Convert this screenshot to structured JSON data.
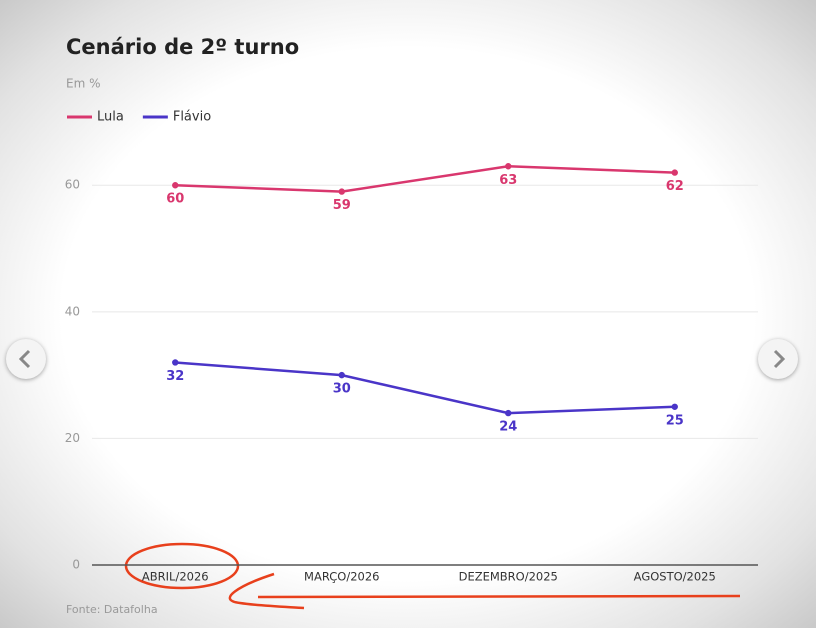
{
  "chart_data": {
    "type": "line",
    "title": "Cenário de 2º turno",
    "subtitle": "Em %",
    "source": "Fonte: Datafolha",
    "categories": [
      "ABRIL/2026",
      "MARÇO/2026",
      "DEZEMBRO/2025",
      "AGOSTO/2025"
    ],
    "series": [
      {
        "name": "Lula",
        "color": "#d9376e",
        "values": [
          60,
          59,
          63,
          62
        ]
      },
      {
        "name": "Flávio",
        "color": "#4a35c8",
        "values": [
          32,
          30,
          24,
          25
        ]
      }
    ],
    "ylim": [
      0,
      65
    ],
    "yticks": [
      0,
      20,
      40,
      60
    ],
    "grid": true
  }
}
